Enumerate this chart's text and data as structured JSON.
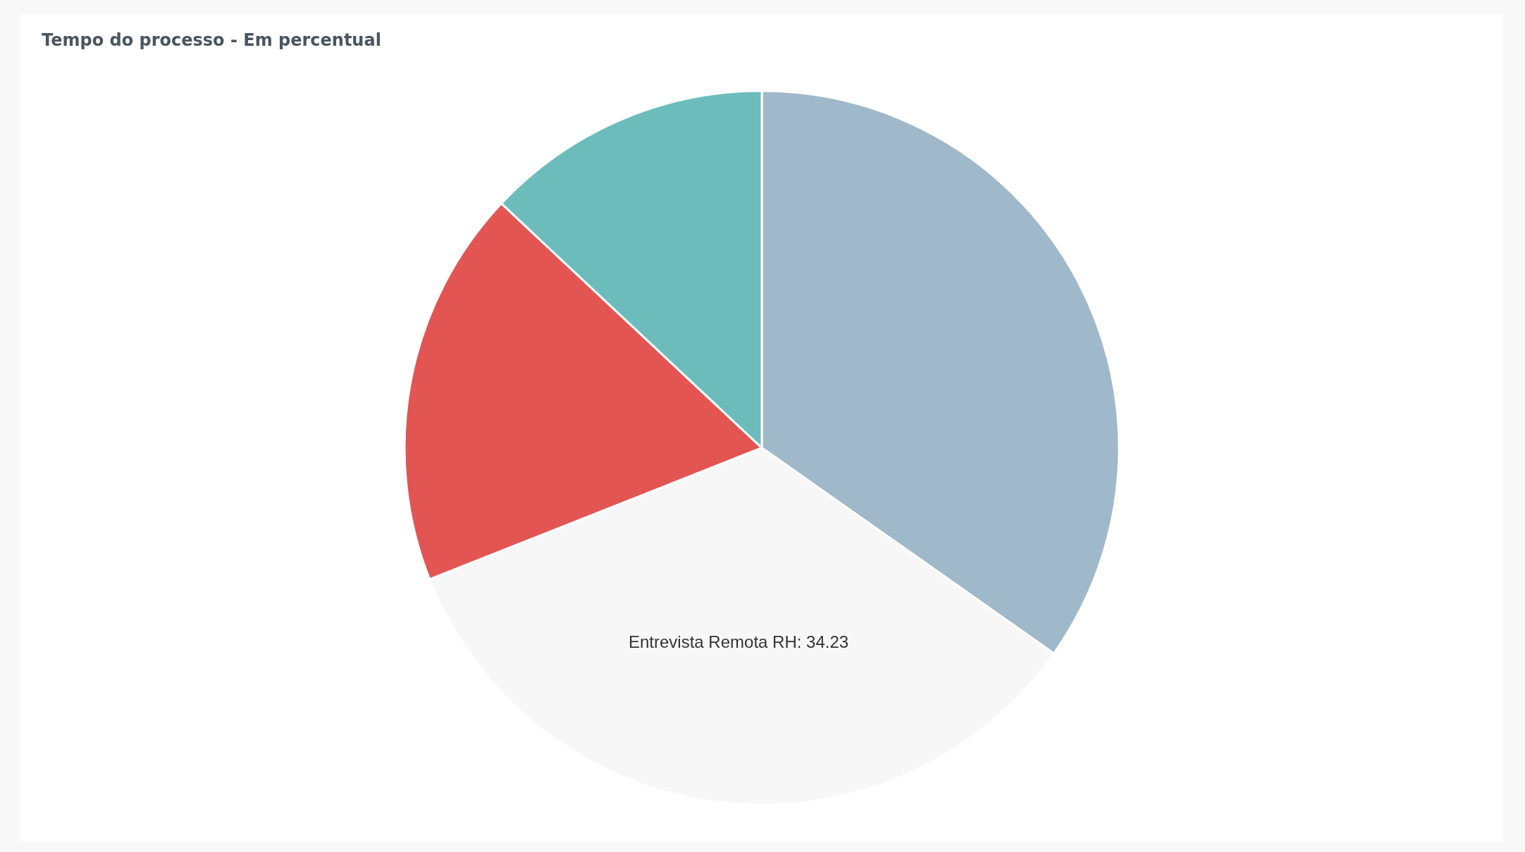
{
  "chart_data": {
    "type": "pie",
    "title": "Tempo do processo - Em percentual",
    "categories": [
      null,
      "Entrevista Remota RH",
      null,
      null
    ],
    "values": [
      34.77,
      34.23,
      18.0,
      13.0
    ],
    "value_labels": [
      null,
      "34.23",
      null,
      null
    ],
    "colors": [
      "#a0b9ca",
      "#f7f7f7",
      "#e35552",
      "#6dbcbc"
    ]
  }
}
